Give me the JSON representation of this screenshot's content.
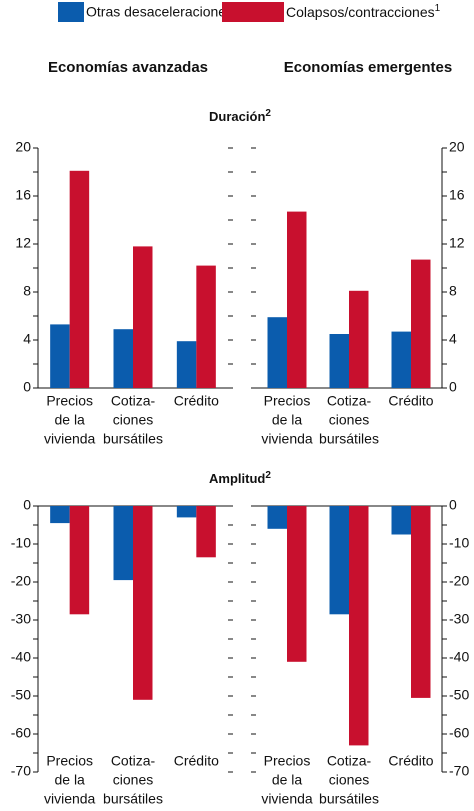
{
  "columns": [
    "Economías avanzadas",
    "Economías emergentes"
  ],
  "sections": [
    {
      "title": "Duración",
      "note": "2"
    },
    {
      "title": "Amplitud",
      "note": "2"
    }
  ],
  "legend_notes": [
    "1"
  ],
  "chart_data": [
    {
      "type": "bar",
      "section": 0,
      "column": 0,
      "axis_side": "left",
      "categories": [
        [
          "Precios",
          "de la",
          "vivienda"
        ],
        [
          "Cotiza-",
          "ciones",
          "bursátiles"
        ],
        [
          "Crédito"
        ]
      ],
      "series": [
        {
          "name": "Otras desaceleraciones",
          "color": "#0b5cad",
          "values": [
            5.3,
            4.9,
            3.9
          ]
        },
        {
          "name": "Colapsos/contracciones",
          "color": "#c8102e",
          "values": [
            18.1,
            11.8,
            10.2
          ]
        }
      ],
      "ylim": [
        0,
        20
      ],
      "yticks": [
        0,
        4,
        8,
        12,
        16,
        20
      ],
      "minor_yticks": [
        2,
        6,
        10,
        14,
        18
      ]
    },
    {
      "type": "bar",
      "section": 0,
      "column": 1,
      "axis_side": "right",
      "categories": [
        [
          "Precios",
          "de la",
          "vivienda"
        ],
        [
          "Cotiza-",
          "ciones",
          "bursátiles"
        ],
        [
          "Crédito"
        ]
      ],
      "series": [
        {
          "name": "Otras desaceleraciones",
          "color": "#0b5cad",
          "values": [
            5.9,
            4.5,
            4.7
          ]
        },
        {
          "name": "Colapsos/contracciones",
          "color": "#c8102e",
          "values": [
            14.7,
            8.1,
            10.7
          ]
        }
      ],
      "ylim": [
        0,
        20
      ],
      "yticks": [
        0,
        4,
        8,
        12,
        16,
        20
      ],
      "minor_yticks": [
        2,
        6,
        10,
        14,
        18
      ]
    },
    {
      "type": "bar",
      "section": 1,
      "column": 0,
      "axis_side": "left",
      "categories": [
        [
          "Precios",
          "de la",
          "vivienda"
        ],
        [
          "Cotiza-",
          "ciones",
          "bursátiles"
        ],
        [
          "Crédito"
        ]
      ],
      "series": [
        {
          "name": "Otras desaceleraciones",
          "color": "#0b5cad",
          "values": [
            -4.5,
            -19.5,
            -3
          ]
        },
        {
          "name": "Colapsos/contracciones",
          "color": "#c8102e",
          "values": [
            -28.5,
            -51,
            -13.5
          ]
        }
      ],
      "ylim": [
        -70,
        0
      ],
      "yticks": [
        0,
        -10,
        -20,
        -30,
        -40,
        -50,
        -60,
        -70
      ],
      "minor_yticks": [
        -5,
        -15,
        -25,
        -35,
        -45,
        -55,
        -65
      ]
    },
    {
      "type": "bar",
      "section": 1,
      "column": 1,
      "axis_side": "right",
      "categories": [
        [
          "Precios",
          "de la",
          "vivienda"
        ],
        [
          "Cotiza-",
          "ciones",
          "bursátiles"
        ],
        [
          "Crédito"
        ]
      ],
      "series": [
        {
          "name": "Otras desaceleraciones",
          "color": "#0b5cad",
          "values": [
            -6,
            -28.5,
            -7.5
          ]
        },
        {
          "name": "Colapsos/contracciones",
          "color": "#c8102e",
          "values": [
            -41,
            -63,
            -50.5
          ]
        }
      ],
      "ylim": [
        -70,
        0
      ],
      "yticks": [
        0,
        -10,
        -20,
        -30,
        -40,
        -50,
        -60,
        -70
      ],
      "minor_yticks": [
        -5,
        -15,
        -25,
        -35,
        -45,
        -55,
        -65
      ]
    }
  ]
}
